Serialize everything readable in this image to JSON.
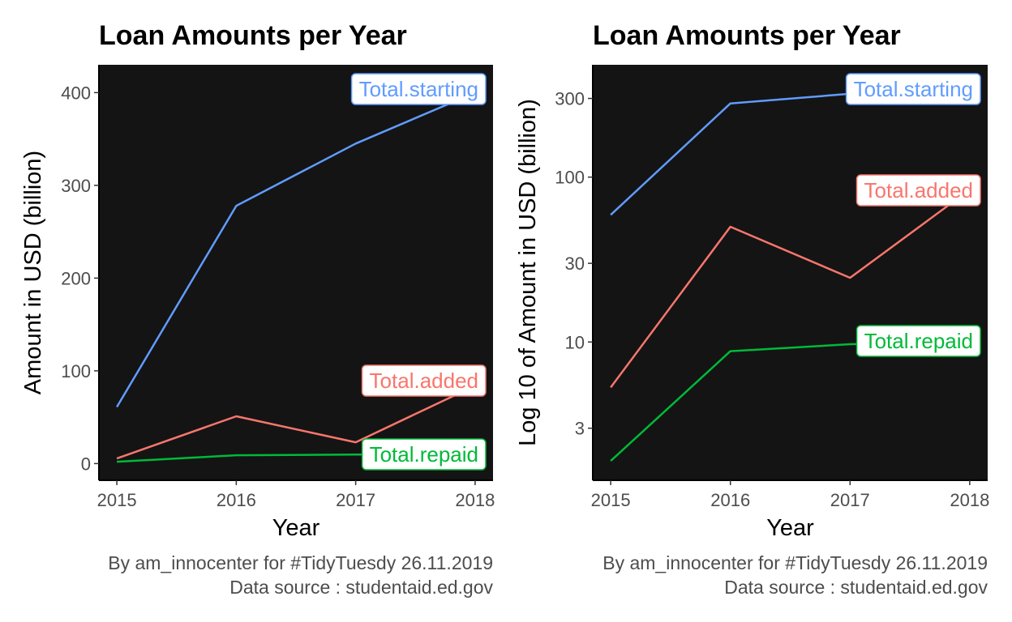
{
  "colors": {
    "panel": "#141414",
    "starting": "#619CFF",
    "added": "#F8766D",
    "repaid": "#00BA38",
    "axis": "#000000",
    "tick_text": "#4d4d4d"
  },
  "chart_data": [
    {
      "type": "line",
      "title": "Loan Amounts per Year",
      "xlabel": "Year",
      "ylabel": "Amount in USD (billion)",
      "scale_y": "linear",
      "x": [
        2015,
        2016,
        2017,
        2018
      ],
      "x_ticks": [
        "2015",
        "2016",
        "2017",
        "2018"
      ],
      "y_ticks": [
        0,
        100,
        200,
        300,
        400
      ],
      "y_tick_labels": [
        "0",
        "100",
        "200",
        "300",
        "400"
      ],
      "xlim": [
        2014.85,
        2018.15
      ],
      "ylim": [
        -18,
        430
      ],
      "series": [
        {
          "name": "Total.starting",
          "values": [
            61,
            278,
            345,
            400
          ]
        },
        {
          "name": "Total.added",
          "values": [
            5.5,
            51,
            23,
            84
          ]
        },
        {
          "name": "Total.repaid",
          "values": [
            2,
            9,
            9.7,
            10
          ]
        }
      ],
      "caption": [
        "By am_innocenter for #TidyTuesdy 26.11.2019",
        "Data source : studentaid.ed.gov"
      ],
      "grid": false
    },
    {
      "type": "line",
      "title": "Loan Amounts per Year",
      "xlabel": "Year",
      "ylabel": "Log 10 of Amount in USD (billion)",
      "scale_y": "log10",
      "x": [
        2015,
        2016,
        2017,
        2018
      ],
      "x_ticks": [
        "2015",
        "2016",
        "2017",
        "2018"
      ],
      "y_ticks": [
        3,
        10,
        30,
        100,
        300
      ],
      "y_tick_labels": [
        "3",
        "10",
        "30",
        "100",
        "300"
      ],
      "xlim": [
        2014.85,
        2018.15
      ],
      "ylim": [
        1.45,
        480
      ],
      "series": [
        {
          "name": "Total.starting",
          "values": [
            59,
            280,
            320,
            400
          ]
        },
        {
          "name": "Total.added",
          "values": [
            5.3,
            50,
            24.5,
            84
          ]
        },
        {
          "name": "Total.repaid",
          "values": [
            1.9,
            8.8,
            9.7,
            10
          ]
        }
      ],
      "caption": [
        "By am_innocenter for #TidyTuesdy 26.11.2019",
        "Data source : studentaid.ed.gov"
      ],
      "grid": false
    }
  ]
}
